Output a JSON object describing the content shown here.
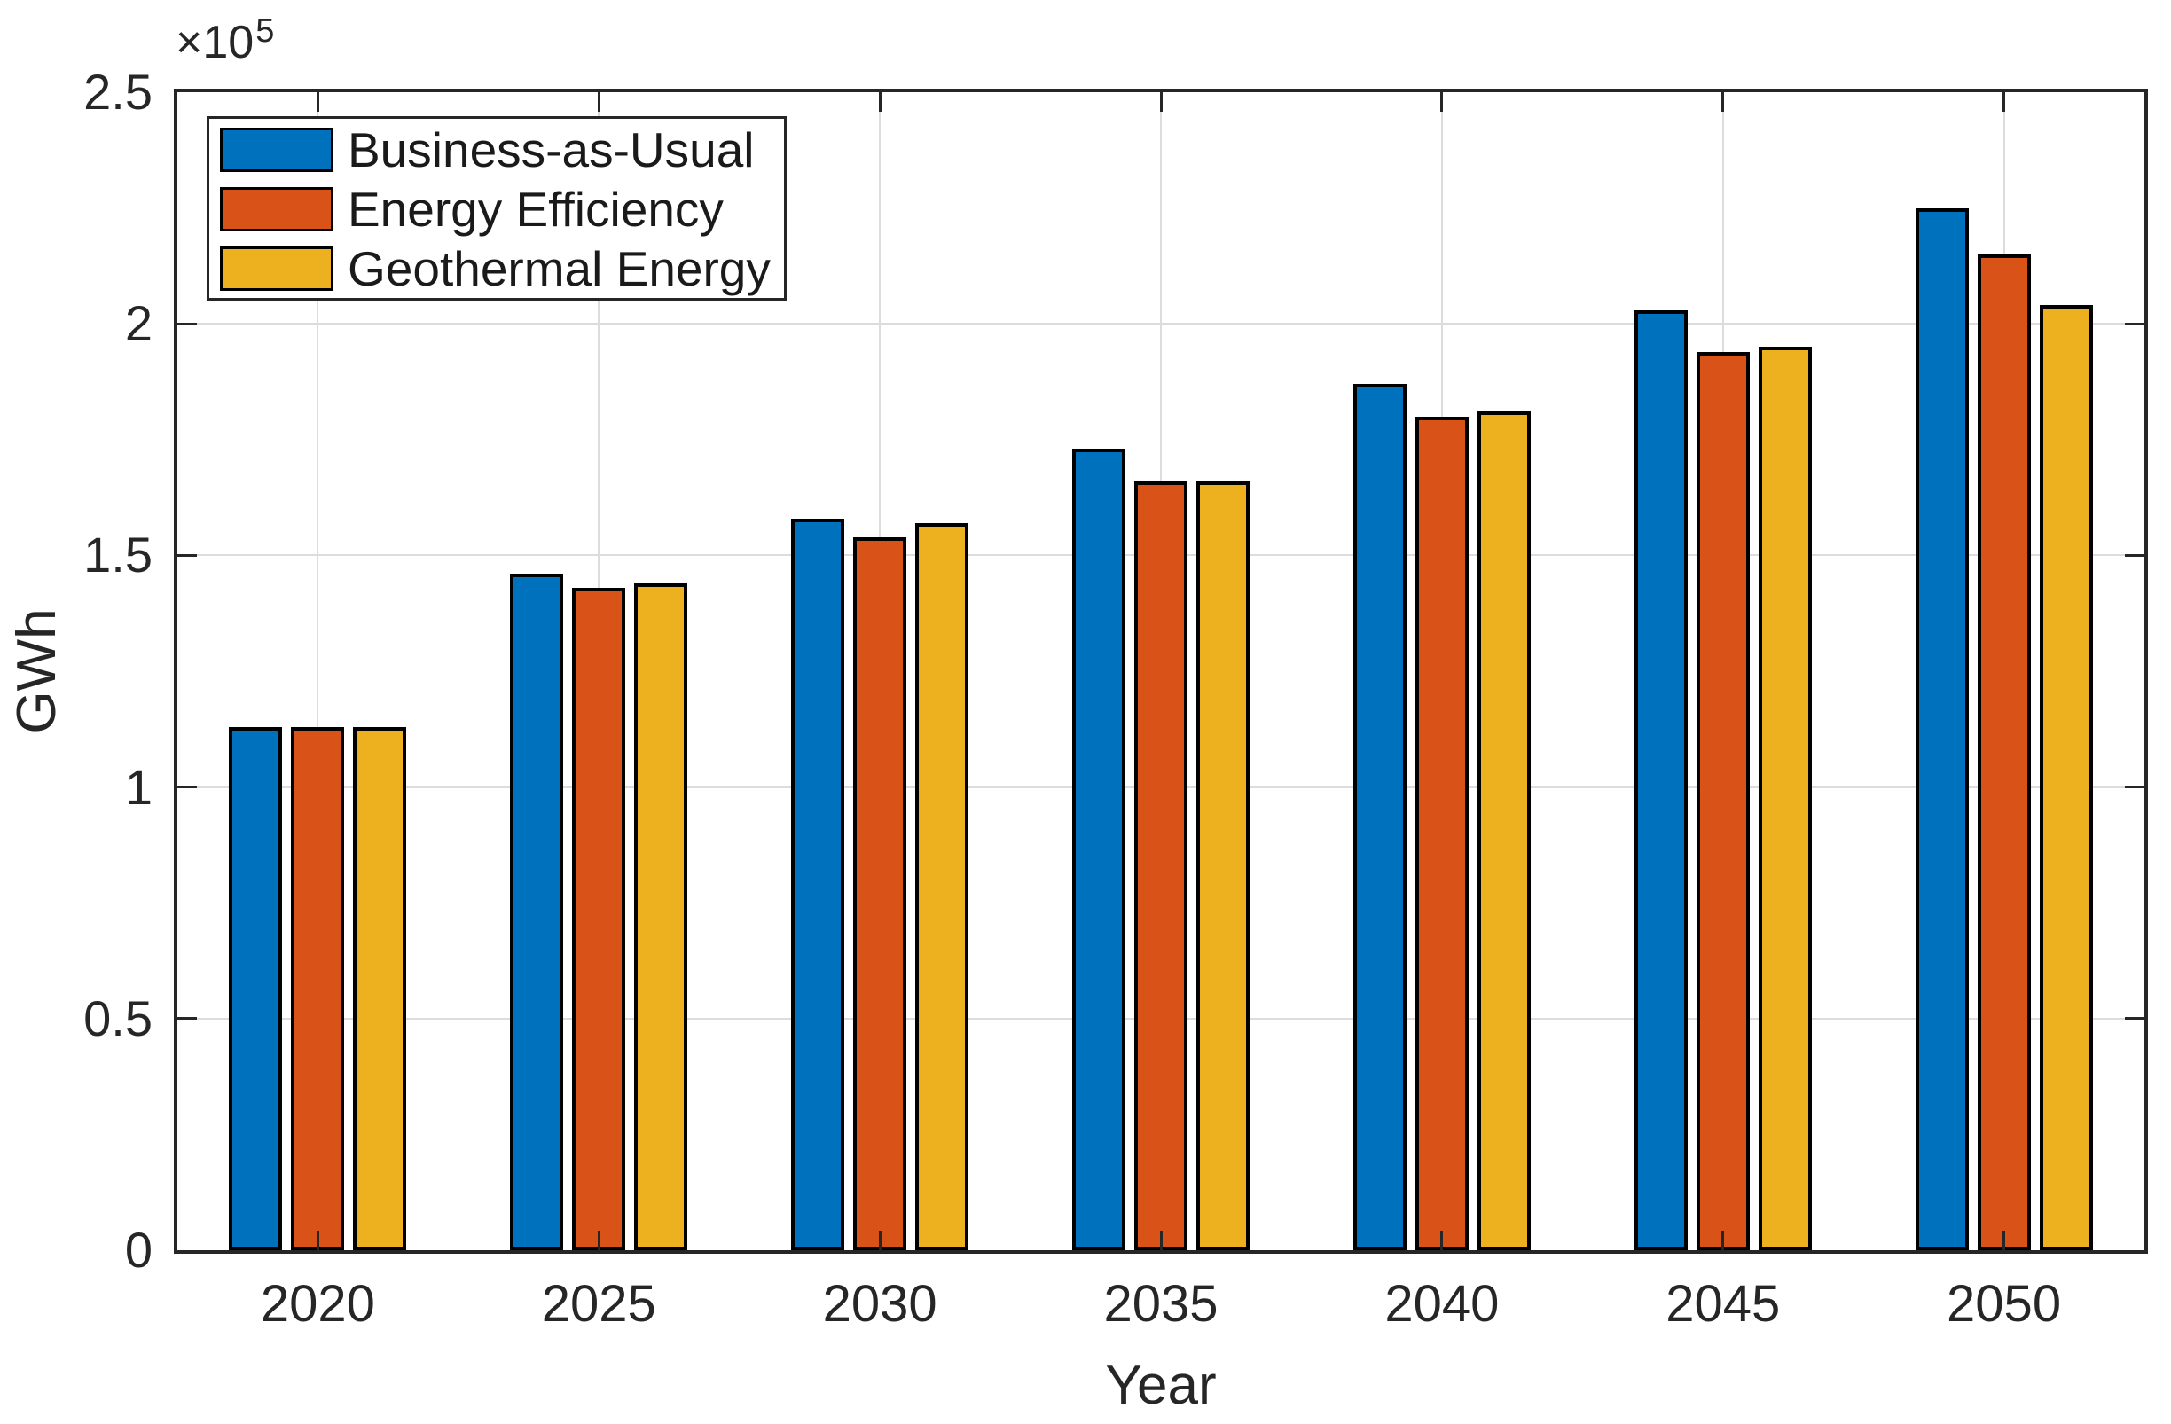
{
  "chart_data": {
    "type": "bar",
    "title": "",
    "xlabel": "Year",
    "ylabel": "GWh",
    "y_offset_label": {
      "base": "×10",
      "exponent": "5"
    },
    "categories": [
      "2020",
      "2025",
      "2030",
      "2035",
      "2040",
      "2045",
      "2050"
    ],
    "series": [
      {
        "name": "Business-as-Usual",
        "color": "#0072BD",
        "values": [
          113000,
          146000,
          158000,
          173000,
          187000,
          203000,
          225000
        ]
      },
      {
        "name": "Energy Efficiency",
        "color": "#D95319",
        "values": [
          113000,
          143000,
          154000,
          166000,
          180000,
          194000,
          215000
        ]
      },
      {
        "name": "Geothermal Energy",
        "color": "#EDB120",
        "values": [
          113000,
          144000,
          157000,
          166000,
          181000,
          195000,
          204000
        ]
      }
    ],
    "ylim": [
      0,
      250000
    ],
    "y_ticks": [
      {
        "label": "0",
        "value": 0
      },
      {
        "label": "0.5",
        "value": 50000
      },
      {
        "label": "1",
        "value": 100000
      },
      {
        "label": "1.5",
        "value": 150000
      },
      {
        "label": "2",
        "value": 200000
      },
      {
        "label": "2.5",
        "value": 250000
      }
    ],
    "grid": "on",
    "legend_position": "top-left",
    "axis_color": "#262626",
    "grid_color": "#DCDCDC",
    "bar_edge_color": "#000000",
    "background": "#FFFFFF"
  }
}
